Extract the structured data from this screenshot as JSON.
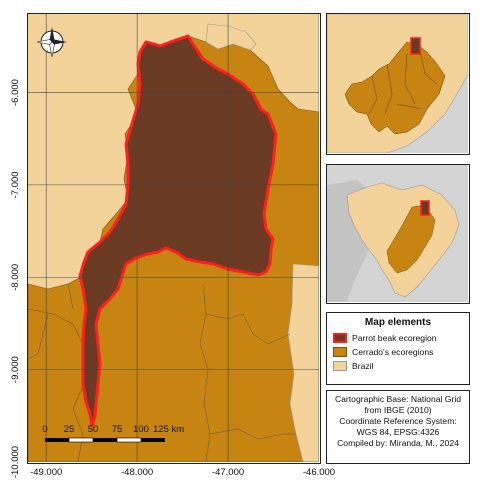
{
  "map": {
    "lon_ticks": [
      "-49.000",
      "-48.000",
      "-47.000",
      "-46.000"
    ],
    "lat_ticks": [
      "-6.000",
      "-7.000",
      "-8.000",
      "-9.000",
      "-10.000"
    ],
    "lon_range": [
      -49.2,
      -46.0
    ],
    "lat_range": [
      -10.0,
      -5.15
    ],
    "scale_bar": {
      "ticks": [
        "0",
        "25",
        "50",
        "75",
        "100"
      ],
      "last_label": "125 km"
    },
    "north_arrow": "compass-rose"
  },
  "legend": {
    "title": "Map elements",
    "items": [
      {
        "label": "Parrot beak ecoregion",
        "fill": "#6b3a23",
        "stroke": "#ff1f1f"
      },
      {
        "label": "Cerrado's ecoregions",
        "fill": "#c88410",
        "stroke": "#7a5210"
      },
      {
        "label": "Brazil",
        "fill": "#f3d39a",
        "stroke": "#999999"
      }
    ]
  },
  "credits": {
    "line1": "Cartographic Base: National Grid",
    "line2": "from IBGE (2010)",
    "line3": "Coordinate Reference System:",
    "line4": "WGS 84, EPSG:4326",
    "line5": "Compiled by:  Miranda, M., 2024"
  },
  "colors": {
    "brazil": "#f3d39a",
    "cerrado": "#c88410",
    "parrot_beak": "#6b3a23",
    "parrot_beak_border": "#ff1f1f",
    "outside": "#d4d4d4"
  }
}
